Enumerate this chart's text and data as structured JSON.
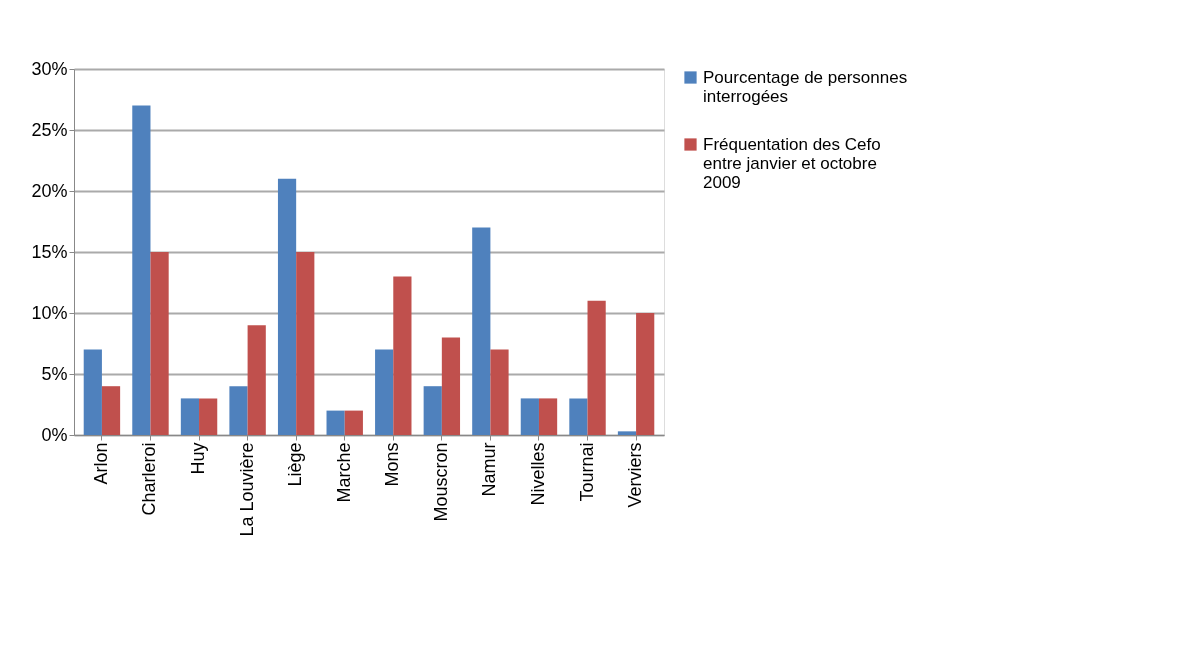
{
  "chart_data": {
    "type": "bar",
    "categories": [
      "Arlon",
      "Charleroi",
      "Huy",
      "La Louvière",
      "Liège",
      "Marche",
      "Mons",
      "Mouscron",
      "Namur",
      "Nivelles",
      "Tournai",
      "Verviers"
    ],
    "series": [
      {
        "name": "Pourcentage de personnes interrogées",
        "color": "#4f81bd",
        "values": [
          7,
          27,
          3,
          4,
          21,
          2,
          7,
          4,
          17,
          3,
          3,
          0.3
        ]
      },
      {
        "name": "Fréquentation des Cefo entre janvier et octobre 2009",
        "color": "#c0504d",
        "values": [
          4,
          15,
          3,
          9,
          15,
          2,
          13,
          8,
          7,
          3,
          11,
          10
        ]
      }
    ],
    "ylim": [
      0,
      30
    ],
    "yticks": [
      {
        "value": 0,
        "label": "0%"
      },
      {
        "value": 5,
        "label": "5%"
      },
      {
        "value": 10,
        "label": "10%"
      },
      {
        "value": 15,
        "label": "15%"
      },
      {
        "value": 20,
        "label": "20%"
      },
      {
        "value": 25,
        "label": "25%"
      },
      {
        "value": 30,
        "label": "30%"
      }
    ],
    "grid": "y",
    "legend": "right"
  }
}
